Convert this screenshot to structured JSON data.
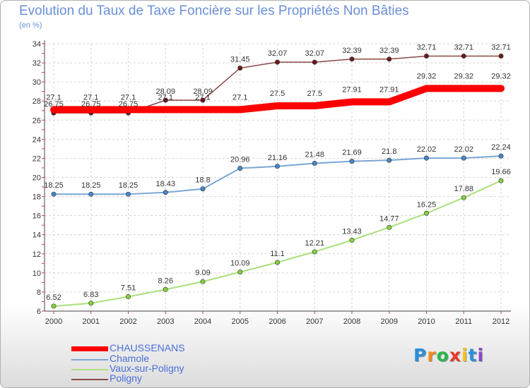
{
  "chart_data": {
    "type": "line",
    "title": "Evolution du Taux de Taxe Foncière sur les Propriétés Non Bâties",
    "ylabel": "(en %)",
    "xlabel": "",
    "ylim": [
      6,
      34
    ],
    "yticks": [
      6,
      8,
      10,
      12,
      14,
      16,
      18,
      20,
      22,
      24,
      26,
      28,
      30,
      32,
      34
    ],
    "categories": [
      "2000",
      "2001",
      "2002",
      "2003",
      "2004",
      "2005",
      "2006",
      "2007",
      "2008",
      "2009",
      "2010",
      "2011",
      "2012"
    ],
    "series": [
      {
        "name": "CHAUSSENANS",
        "color": "#ff0000",
        "values": [
          27.1,
          27.1,
          27.1,
          27.1,
          27.1,
          27.1,
          27.5,
          27.5,
          27.91,
          27.91,
          29.32,
          29.32,
          29.32
        ],
        "labels": [
          "27.1",
          "27.1",
          "27.1",
          "27.1",
          "27.1",
          "27.1",
          "27.5",
          "27.5",
          "27.91",
          "27.91",
          "29.32",
          "29.32",
          "29.32"
        ]
      },
      {
        "name": "Chamole",
        "color": "#7aa6d4",
        "values": [
          18.25,
          18.25,
          18.25,
          18.43,
          18.8,
          20.96,
          21.16,
          21.48,
          21.69,
          21.8,
          22.02,
          22.02,
          22.24
        ],
        "labels": [
          "18.25",
          "18.25",
          "18.25",
          "18.43",
          "18.8",
          "20.96",
          "21.16",
          "21.48",
          "21.69",
          "21.8",
          "22.02",
          "22.02",
          "22.24"
        ]
      },
      {
        "name": "Vaux-sur-Poligny",
        "color": "#a8e07a",
        "values": [
          6.52,
          6.83,
          7.51,
          8.26,
          9.09,
          10.09,
          11.1,
          12.21,
          13.43,
          14.77,
          16.25,
          17.88,
          19.66
        ],
        "labels": [
          "6.52",
          "6.83",
          "7.51",
          "8.26",
          "9.09",
          "10.09",
          "11.1",
          "12.21",
          "13.43",
          "14.77",
          "16.25",
          "17.88",
          "19.66"
        ]
      },
      {
        "name": "Poligny",
        "color": "#8a4848",
        "values": [
          26.75,
          26.75,
          26.75,
          28.09,
          28.09,
          31.45,
          32.07,
          32.07,
          32.39,
          32.39,
          32.71,
          32.71,
          32.71
        ],
        "labels": [
          "26.75",
          "26.75",
          "26.75",
          "28.09",
          "28.09",
          "31.45",
          "32.07",
          "32.07",
          "32.39",
          "32.39",
          "32.71",
          "32.71",
          "32.71"
        ]
      }
    ],
    "legend_position": "bottom-left"
  },
  "logo": {
    "letters": [
      "P",
      "r",
      "o",
      "x",
      "i",
      "t",
      "i"
    ]
  }
}
